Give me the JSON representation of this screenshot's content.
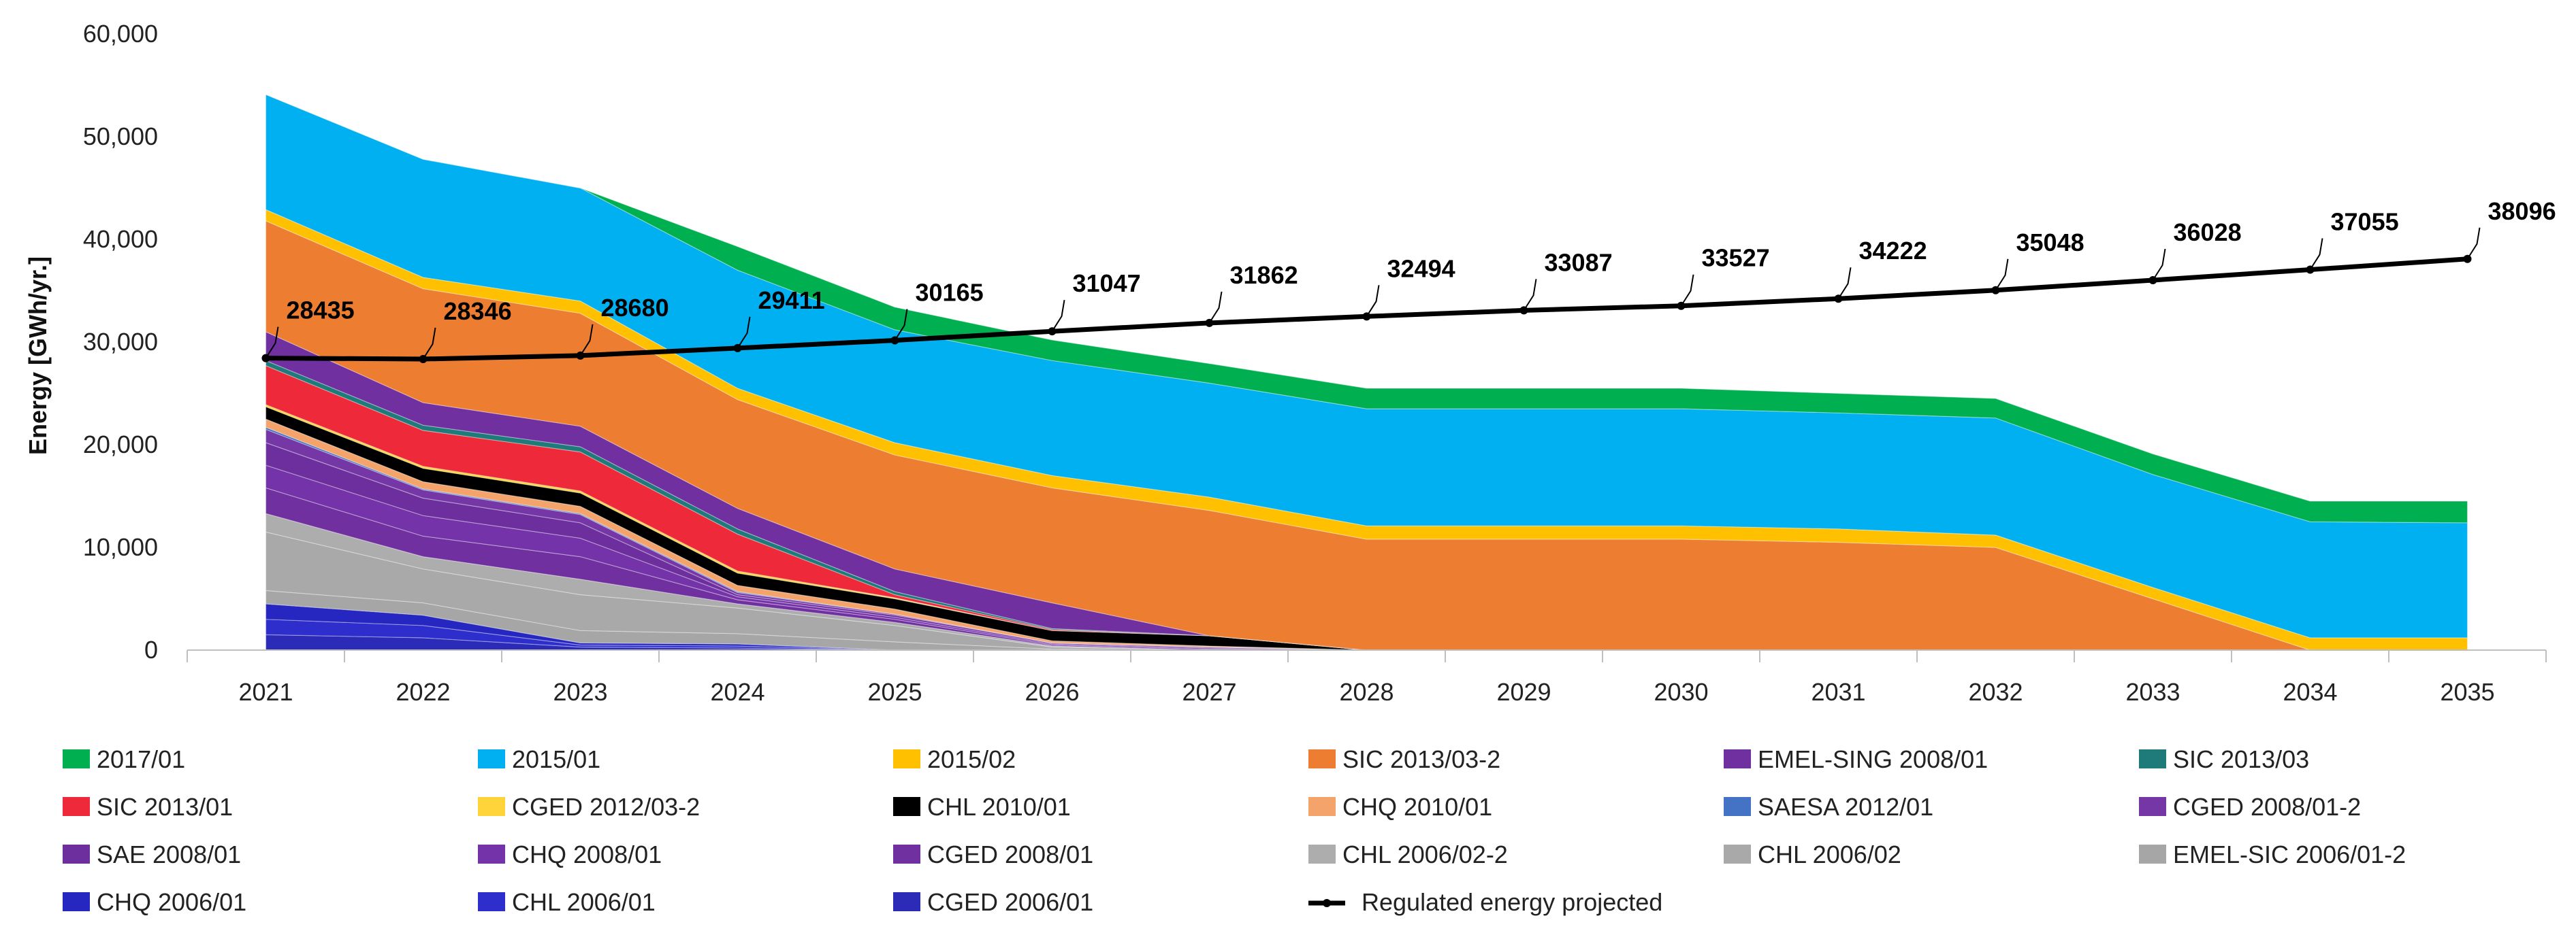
{
  "chart_data": {
    "type": "area",
    "stacked": true,
    "title": "",
    "xlabel": "",
    "ylabel": "Energy  [GWh/yr.]",
    "ylim": [
      0,
      60000
    ],
    "yticks": [
      "0",
      "10,000",
      "20,000",
      "30,000",
      "40,000",
      "50,000",
      "60,000"
    ],
    "categories": [
      "2021",
      "2022",
      "2023",
      "2024",
      "2025",
      "2026",
      "2027",
      "2028",
      "2029",
      "2030",
      "2031",
      "2032",
      "2033",
      "2034",
      "2035"
    ],
    "series": [
      {
        "name": "CGED 2006/01",
        "color": "#2B2BB8",
        "values": [
          1500,
          1200,
          300,
          200,
          0,
          0,
          0,
          0,
          0,
          0,
          0,
          0,
          0,
          0,
          0
        ]
      },
      {
        "name": "CHL 2006/01",
        "color": "#2E2ECC",
        "values": [
          1500,
          1200,
          200,
          200,
          0,
          0,
          0,
          0,
          0,
          0,
          0,
          0,
          0,
          0,
          0
        ]
      },
      {
        "name": "CHQ 2006/01",
        "color": "#2626C0",
        "values": [
          1500,
          1000,
          200,
          200,
          0,
          0,
          0,
          0,
          0,
          0,
          0,
          0,
          0,
          0,
          0
        ]
      },
      {
        "name": "EMEL-SIC 2006/01-2",
        "color": "#A6A6A6",
        "values": [
          1300,
          1200,
          1200,
          1000,
          800,
          100,
          0,
          0,
          0,
          0,
          0,
          0,
          0,
          0,
          0
        ]
      },
      {
        "name": "CHL 2006/02",
        "color": "#A9A9A9",
        "values": [
          5700,
          3300,
          3500,
          2500,
          1600,
          200,
          0,
          0,
          0,
          0,
          0,
          0,
          0,
          0,
          0
        ]
      },
      {
        "name": "CHL 2006/02-2",
        "color": "#ADADAD",
        "values": [
          1800,
          1200,
          1500,
          400,
          300,
          100,
          0,
          0,
          0,
          0,
          0,
          0,
          0,
          0,
          0
        ]
      },
      {
        "name": "CGED 2008/01",
        "color": "#7030A0",
        "values": [
          2500,
          2000,
          2200,
          400,
          300,
          100,
          100,
          0,
          0,
          0,
          0,
          0,
          0,
          0,
          0
        ]
      },
      {
        "name": "CHQ 2008/01",
        "color": "#7433A8",
        "values": [
          2200,
          2000,
          1800,
          300,
          200,
          100,
          100,
          0,
          0,
          0,
          0,
          0,
          0,
          0,
          0
        ]
      },
      {
        "name": "SAE 2008/01",
        "color": "#6E2F9E",
        "values": [
          2200,
          1700,
          1500,
          200,
          200,
          100,
          100,
          0,
          0,
          0,
          0,
          0,
          0,
          0,
          0
        ]
      },
      {
        "name": "CGED 2008/01-2",
        "color": "#7536A6",
        "values": [
          1300,
          800,
          800,
          200,
          100,
          0,
          0,
          0,
          0,
          0,
          0,
          0,
          0,
          0,
          0
        ]
      },
      {
        "name": "SAESA 2012/01",
        "color": "#4472C4",
        "values": [
          200,
          100,
          100,
          100,
          0,
          0,
          0,
          0,
          0,
          0,
          0,
          0,
          0,
          0,
          0
        ]
      },
      {
        "name": "CHQ 2010/01",
        "color": "#F4A46A",
        "values": [
          800,
          700,
          700,
          600,
          500,
          200,
          100,
          0,
          0,
          0,
          0,
          0,
          0,
          0,
          0
        ]
      },
      {
        "name": "CHL 2010/01",
        "color": "#000000",
        "values": [
          1200,
          1300,
          1300,
          1200,
          1000,
          1000,
          1000,
          0,
          0,
          0,
          0,
          0,
          0,
          0,
          0
        ]
      },
      {
        "name": "CGED 2012/03-2",
        "color": "#FFD43B",
        "values": [
          200,
          200,
          200,
          200,
          100,
          0,
          0,
          0,
          0,
          0,
          0,
          0,
          0,
          0,
          0
        ]
      },
      {
        "name": "SIC 2013/01",
        "color": "#EE2A3A",
        "values": [
          3800,
          3500,
          3800,
          3600,
          300,
          100,
          0,
          0,
          0,
          0,
          0,
          0,
          0,
          0,
          0
        ]
      },
      {
        "name": "SIC 2013/03",
        "color": "#1F7A7A",
        "values": [
          500,
          500,
          500,
          500,
          300,
          100,
          0,
          0,
          0,
          0,
          0,
          0,
          0,
          0,
          0
        ]
      },
      {
        "name": "EMEL-SING 2008/01",
        "color": "#7030A0",
        "values": [
          2800,
          2200,
          2000,
          2000,
          2200,
          2500,
          0,
          0,
          0,
          0,
          0,
          0,
          0,
          0,
          0
        ]
      },
      {
        "name": "SIC 2013/03-2",
        "color": "#ED7D31",
        "values": [
          10800,
          11100,
          11000,
          10600,
          11100,
          11200,
          12200,
          10800,
          10800,
          10800,
          10500,
          10000,
          5000,
          0,
          0
        ]
      },
      {
        "name": "2015/02",
        "color": "#FFC000",
        "values": [
          1100,
          1100,
          1200,
          1100,
          1200,
          1200,
          1300,
          1300,
          1300,
          1300,
          1300,
          1200,
          1100,
          1200,
          1200
        ]
      },
      {
        "name": "2015/01",
        "color": "#00B0F0",
        "values": [
          11200,
          11500,
          11000,
          11500,
          11000,
          11200,
          11100,
          11400,
          11400,
          11400,
          11300,
          11400,
          11000,
          11300,
          11200
        ]
      },
      {
        "name": "2017/01",
        "color": "#00B050",
        "values": [
          0,
          0,
          0,
          2300,
          2200,
          2000,
          1900,
          2000,
          2000,
          2000,
          1900,
          1900,
          2000,
          2000,
          2100
        ]
      }
    ],
    "line_series": {
      "name": "Regulated energy projected",
      "color": "#000000",
      "values": [
        28435,
        28346,
        28680,
        29411,
        30165,
        31047,
        31862,
        32494,
        33087,
        33527,
        34222,
        35048,
        36028,
        37055,
        38096
      ],
      "labels": [
        "28435",
        "28346",
        "28680",
        "29411",
        "30165",
        "31047",
        "31862",
        "32494",
        "33087",
        "33527",
        "34222",
        "35048",
        "36028",
        "37055",
        "38096"
      ]
    },
    "legend_order": [
      "2017/01",
      "2015/01",
      "2015/02",
      "SIC 2013/03-2",
      "EMEL-SING 2008/01",
      "SIC 2013/03",
      "SIC 2013/01",
      "CGED 2012/03-2",
      "CHL 2010/01",
      "CHQ 2010/01",
      "SAESA 2012/01",
      "CGED 2008/01-2",
      "SAE 2008/01",
      "CHQ 2008/01",
      "CGED 2008/01",
      "CHL 2006/02-2",
      "CHL 2006/02",
      "EMEL-SIC 2006/01-2",
      "CHQ 2006/01",
      "CHL 2006/01",
      "CGED 2006/01",
      "Regulated energy projected"
    ],
    "legend_position": "bottom",
    "grid": false
  }
}
